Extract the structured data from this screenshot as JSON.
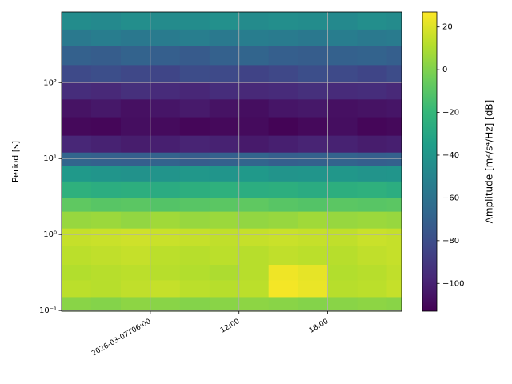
{
  "chart_data": {
    "type": "heatmap",
    "ylabel": "Period [s]",
    "colorbar_label": "Amplitude [m²/s⁴/Hz] [dB]",
    "yscale": "log",
    "grid": true,
    "colormap": "viridis",
    "xlim": [
      "2026-03-07T00:00",
      "2026-03-07T23:00"
    ],
    "xticks": [
      {
        "value": "2026-03-07T06:00",
        "label": "2026-03-07T06:00"
      },
      {
        "value": "2026-03-07T12:00",
        "label": "12:00"
      },
      {
        "value": "2026-03-07T18:00",
        "label": "18:00"
      }
    ],
    "ylim": [
      0.098,
      850
    ],
    "yticks": [
      {
        "value": 0.1,
        "label": "10⁻¹"
      },
      {
        "value": 1,
        "label": "10⁰"
      },
      {
        "value": 10,
        "label": "10¹"
      },
      {
        "value": 100,
        "label": "10²"
      }
    ],
    "clim": [
      -113,
      27
    ],
    "cticks": [
      {
        "value": -100,
        "label": "−100"
      },
      {
        "value": -80,
        "label": "−80"
      },
      {
        "value": -60,
        "label": "−60"
      },
      {
        "value": -40,
        "label": "−40"
      },
      {
        "value": -20,
        "label": "−20"
      },
      0,
      20
    ],
    "time_edges": [
      "2026-03-07T00:00",
      "2026-03-07T02:00",
      "2026-03-07T04:00",
      "2026-03-07T06:00",
      "2026-03-07T08:00",
      "2026-03-07T10:00",
      "2026-03-07T12:00",
      "2026-03-07T14:00",
      "2026-03-07T16:00",
      "2026-03-07T18:00",
      "2026-03-07T20:00",
      "2026-03-07T22:00",
      "2026-03-07T23:00"
    ],
    "period_edges": [
      850,
      500,
      300,
      170,
      100,
      60,
      35,
      20,
      12,
      8,
      5,
      3,
      2,
      1.2,
      0.7,
      0.4,
      0.25,
      0.15,
      0.098
    ],
    "z": [
      [
        -45,
        -47,
        -44,
        -46,
        -45,
        -43,
        -46,
        -44,
        -45,
        -47,
        -44,
        -46
      ],
      [
        -56,
        -54,
        -57,
        -55,
        -53,
        -56,
        -54,
        -55,
        -57,
        -54,
        -56,
        -55
      ],
      [
        -70,
        -72,
        -69,
        -71,
        -73,
        -70,
        -68,
        -71,
        -72,
        -70,
        -69,
        -71
      ],
      [
        -82,
        -80,
        -83,
        -84,
        -81,
        -82,
        -85,
        -83,
        -80,
        -82,
        -84,
        -81
      ],
      [
        -95,
        -97,
        -94,
        -96,
        -98,
        -95,
        -97,
        -96,
        -94,
        -96,
        -95,
        -97
      ],
      [
        -106,
        -104,
        -107,
        -105,
        -103,
        -106,
        -108,
        -105,
        -104,
        -107,
        -106,
        -105
      ],
      [
        -110,
        -111,
        -108,
        -109,
        -111,
        -110,
        -109,
        -112,
        -110,
        -108,
        -111,
        -110
      ],
      [
        -98,
        -100,
        -102,
        -101,
        -99,
        -100,
        -103,
        -101,
        -99,
        -100,
        -102,
        -101
      ],
      [
        -68,
        -70,
        -71,
        -69,
        -72,
        -70,
        -68,
        -71,
        -70,
        -69,
        -71,
        -70
      ],
      [
        -38,
        -40,
        -42,
        -41,
        -39,
        -40,
        -38,
        -41,
        -40,
        -39,
        -41,
        -40
      ],
      [
        -24,
        -26,
        -25,
        -27,
        -25,
        -24,
        -26,
        -25,
        -27,
        -25,
        -24,
        -26
      ],
      [
        -8,
        -10,
        -9,
        -11,
        -10,
        -9,
        -8,
        -10,
        -11,
        -9,
        -10,
        -9
      ],
      [
        5,
        6,
        4,
        7,
        5,
        6,
        4,
        5,
        7,
        5,
        6,
        5
      ],
      [
        15,
        16,
        17,
        16,
        15,
        14,
        15,
        16,
        15,
        14,
        16,
        15
      ],
      [
        13,
        14,
        15,
        13,
        12,
        13,
        12,
        14,
        13,
        12,
        14,
        15
      ],
      [
        11,
        12,
        13,
        12,
        11,
        10,
        12,
        24,
        22,
        11,
        12,
        14
      ],
      [
        13,
        12,
        14,
        15,
        13,
        12,
        13,
        25,
        23,
        12,
        13,
        15
      ],
      [
        2,
        1,
        3,
        2,
        1,
        2,
        3,
        2,
        1,
        2,
        3,
        2
      ]
    ]
  }
}
